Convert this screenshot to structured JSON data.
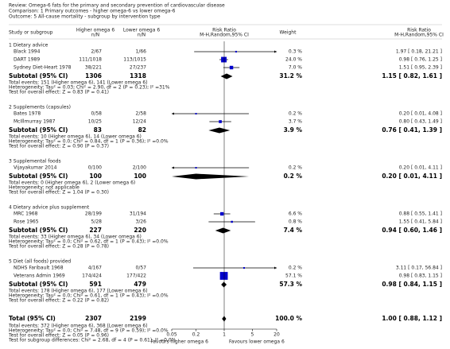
{
  "header": {
    "review": "Review:  Omega-6 fats for the primary and secondary prevention of cardiovascular disease",
    "comparison": "Comparison:  1 Primary outcomes - higher omega-6 vs lower omega-6",
    "outcome": "Outcome:  5 All-cause mortality - subgroup by intervention type"
  },
  "chart_data": {
    "type": "forest",
    "columns": [
      {
        "label": "Study or subgroup"
      },
      {
        "label": "Higher omega 6",
        "sublabel": "n/N"
      },
      {
        "label": "Lower omega 6",
        "sublabel": "n/N"
      },
      {
        "label": "Risk Ratio",
        "sublabel": "M-H,Random,95% CI"
      },
      {
        "label": "Weight"
      },
      {
        "label": "Risk Ratio",
        "sublabel": "M-H,Random,95% CI"
      }
    ],
    "xlim": [
      0.05,
      20
    ],
    "xticks": [
      0.05,
      0.2,
      1,
      5,
      20
    ],
    "log_scale": true,
    "study_color": "#0000cc",
    "summary_color": "#000000",
    "favours_left": "Favours higher omega 6",
    "favours_right": "Favours lower omega 6",
    "groups": [
      {
        "title": "1 Dietary advice",
        "studies": [
          {
            "name": "Black 1994",
            "higher": "2/67",
            "lower": "1/66",
            "weight": 0.3,
            "weight_label": "0.3 %",
            "rr": 1.97,
            "ci_low": 0.18,
            "ci_high": 21.21,
            "ci_label": "1.97 [ 0.18, 21.21 ]"
          },
          {
            "name": "DART 1989",
            "higher": "111/1018",
            "lower": "113/1015",
            "weight": 24.0,
            "weight_label": "24.0 %",
            "rr": 0.98,
            "ci_low": 0.76,
            "ci_high": 1.25,
            "ci_label": "0.98 [ 0.76, 1.25 ]"
          },
          {
            "name": "Sydney Diet-Heart 1978",
            "higher": "38/221",
            "lower": "27/237",
            "weight": 7.0,
            "weight_label": "7.0 %",
            "rr": 1.51,
            "ci_low": 0.95,
            "ci_high": 2.39,
            "ci_label": "1.51 [ 0.95, 2.39 ]"
          }
        ],
        "subtotal": {
          "label": "Subtotal (95% CI)",
          "higher_total": 1306,
          "lower_total": 1318,
          "weight_label": "31.2 %",
          "rr": 1.15,
          "ci_low": 0.82,
          "ci_high": 1.61,
          "ci_label": "1.15 [ 0.82, 1.61 ]"
        },
        "notes": [
          "Total events: 151 (Higher omega 6), 141 (Lower omega 6)",
          "Heterogeneity: Tau² = 0.03; Chi² = 2.90, df = 2 (P = 0.23); I² =31%",
          "Test for overall effect: Z = 0.83 (P = 0.41)"
        ]
      },
      {
        "title": "2 Supplements (capsules)",
        "studies": [
          {
            "name": "Bates 1978",
            "higher": "0/58",
            "lower": "2/58",
            "weight": 0.2,
            "weight_label": "0.2 %",
            "rr": 0.2,
            "ci_low": 0.01,
            "ci_high": 4.08,
            "ci_label": "0.20 [ 0.01, 4.08 ]"
          },
          {
            "name": "McIllmurray 1987",
            "higher": "10/25",
            "lower": "12/24",
            "weight": 3.7,
            "weight_label": "3.7 %",
            "rr": 0.8,
            "ci_low": 0.43,
            "ci_high": 1.49,
            "ci_label": "0.80 [ 0.43, 1.49 ]"
          }
        ],
        "subtotal": {
          "label": "Subtotal (95% CI)",
          "higher_total": 83,
          "lower_total": 82,
          "weight_label": "3.9 %",
          "rr": 0.76,
          "ci_low": 0.41,
          "ci_high": 1.39,
          "ci_label": "0.76 [ 0.41, 1.39 ]"
        },
        "notes": [
          "Total events: 10 (Higher omega 6), 14 (Lower omega 6)",
          "Heterogeneity: Tau² = 0.0; Chi² = 0.84, df = 1 (P = 0.36); I² =0.0%",
          "Test for overall effect: Z = 0.90 (P = 0.37)"
        ]
      },
      {
        "title": "3 Supplemental foods",
        "studies": [
          {
            "name": "Vijayakumar 2014",
            "higher": "0/100",
            "lower": "2/100",
            "weight": 0.2,
            "weight_label": "0.2 %",
            "rr": 0.2,
            "ci_low": 0.01,
            "ci_high": 4.11,
            "ci_label": "0.20 [ 0.01, 4.11 ]"
          }
        ],
        "subtotal": {
          "label": "Subtotal (95% CI)",
          "higher_total": 100,
          "lower_total": 100,
          "weight_label": "0.2 %",
          "rr": 0.2,
          "ci_low": 0.01,
          "ci_high": 4.11,
          "ci_label": "0.20 [ 0.01, 4.11 ]"
        },
        "notes": [
          "Total events: 0 (Higher omega 6), 2 (Lower omega 6)",
          "Heterogeneity: not applicable",
          "Test for overall effect: Z = 1.04 (P = 0.30)"
        ]
      },
      {
        "title": "4 Dietary advice plus supplement",
        "studies": [
          {
            "name": "MRC 1968",
            "higher": "28/199",
            "lower": "31/194",
            "weight": 6.6,
            "weight_label": "6.6 %",
            "rr": 0.88,
            "ci_low": 0.55,
            "ci_high": 1.41,
            "ci_label": "0.88 [ 0.55, 1.41 ]"
          },
          {
            "name": "Rose 1965",
            "higher": "5/28",
            "lower": "3/26",
            "weight": 0.8,
            "weight_label": "0.8 %",
            "rr": 1.55,
            "ci_low": 0.41,
            "ci_high": 5.84,
            "ci_label": "1.55 [ 0.41, 5.84 ]"
          }
        ],
        "subtotal": {
          "label": "Subtotal (95% CI)",
          "higher_total": 227,
          "lower_total": 220,
          "weight_label": "7.4 %",
          "rr": 0.94,
          "ci_low": 0.6,
          "ci_high": 1.46,
          "ci_label": "0.94 [ 0.60, 1.46 ]"
        },
        "notes": [
          "Total events: 33 (Higher omega 6), 34 (Lower omega 6)",
          "Heterogeneity: Tau² = 0.0; Chi² = 0.62, df = 1 (P = 0.43); I² =0.0%",
          "Test for overall effect: Z = 0.28 (P = 0.78)"
        ]
      },
      {
        "title": "5 Diet (all foods) provided",
        "studies": [
          {
            "name": "NDHS Faribault 1968",
            "higher": "4/167",
            "lower": "0/57",
            "weight": 0.2,
            "weight_label": "0.2 %",
            "rr": 3.11,
            "ci_low": 0.17,
            "ci_high": 56.84,
            "ci_label": "3.11 [ 0.17, 56.84 ]"
          },
          {
            "name": "Veterans Admin 1969",
            "higher": "174/424",
            "lower": "177/422",
            "weight": 57.1,
            "weight_label": "57.1 %",
            "rr": 0.98,
            "ci_low": 0.83,
            "ci_high": 1.15,
            "ci_label": "0.98 [ 0.83, 1.15 ]"
          }
        ],
        "subtotal": {
          "label": "Subtotal (95% CI)",
          "higher_total": 591,
          "lower_total": 479,
          "weight_label": "57.3 %",
          "rr": 0.98,
          "ci_low": 0.84,
          "ci_high": 1.15,
          "ci_label": "0.98 [ 0.84, 1.15 ]"
        },
        "notes": [
          "Total events: 178 (Higher omega 6), 177 (Lower omega 6)",
          "Heterogeneity: Tau² = 0.0; Chi² = 0.61, df = 1 (P = 0.43); I² =0.0%",
          "Test for overall effect: Z = 0.22 (P = 0.82)"
        ]
      }
    ],
    "total": {
      "label": "Total (95% CI)",
      "higher_total": 2307,
      "lower_total": 2199,
      "weight_label": "100.0 %",
      "rr": 1.0,
      "ci_low": 0.88,
      "ci_high": 1.12,
      "ci_label": "1.00 [ 0.88, 1.12 ]",
      "notes": [
        "Total events: 372 (Higher omega 6), 368 (Lower omega 6)",
        "Heterogeneity: Tau² = 0.0; Chi² = 7.48, df = 9 (P = 0.59); I² =0.0%",
        "Test for overall effect: Z = 0.05 (P = 0.96)",
        "Test for subgroup differences: Chi² = 2.68, df = 4 (P = 0.61), I² =0.0%"
      ]
    }
  }
}
